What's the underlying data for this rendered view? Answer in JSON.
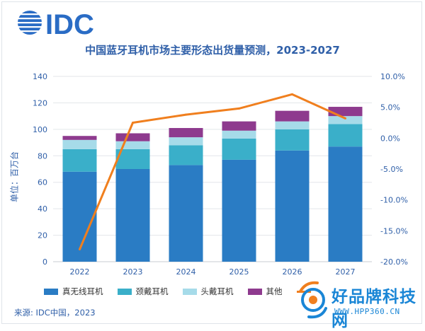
{
  "brand": {
    "logo_text": "IDC",
    "logo_color": "#2a6cc5",
    "title_color": "#2f5fa8"
  },
  "chart_data": {
    "type": "bar",
    "title": "中国蓝牙耳机市场主要形态出货量预测，2023-2027",
    "ylabel": "单位：百万台",
    "categories": [
      "2022",
      "2023",
      "2024",
      "2025",
      "2026",
      "2027"
    ],
    "ylim": [
      0,
      140
    ],
    "y_ticks": [
      "0",
      "20",
      "40",
      "60",
      "80",
      "100",
      "120",
      "140"
    ],
    "y2lim": [
      -20,
      10
    ],
    "y2_ticks": [
      "-20.0%",
      "-15.0%",
      "-10.0%",
      "-5.0%",
      "0.0%",
      "5.0%",
      "10.0%"
    ],
    "stacked": true,
    "series": [
      {
        "name": "真无线耳机",
        "color": "#2a7cc4",
        "values": [
          68,
          70,
          73,
          77,
          84,
          87
        ]
      },
      {
        "name": "颈戴耳机",
        "color": "#3aafc9",
        "values": [
          17,
          15,
          15,
          16,
          16,
          17
        ]
      },
      {
        "name": "头戴耳机",
        "color": "#a6dbe9",
        "values": [
          7,
          6,
          6,
          6,
          6,
          6
        ]
      },
      {
        "name": "其他",
        "color": "#8e3a8e",
        "values": [
          3,
          6,
          7,
          7,
          8,
          7
        ]
      }
    ],
    "line_series": {
      "name": "",
      "color": "#f07f1e",
      "axis": "right",
      "values": [
        -18.0,
        2.5,
        3.8,
        4.8,
        7.1,
        3.2
      ]
    },
    "grid": true,
    "legend_position": "bottom"
  },
  "legend": {
    "items": [
      "真无线耳机",
      "颈戴耳机",
      "头戴耳机",
      "其他"
    ]
  },
  "source": "来源: IDC中国，2023",
  "watermark": {
    "text": "好品牌科技网",
    "url": "WWW.HPP360.CN",
    "color": "#1a86d6",
    "accent": "#f07f1e"
  }
}
